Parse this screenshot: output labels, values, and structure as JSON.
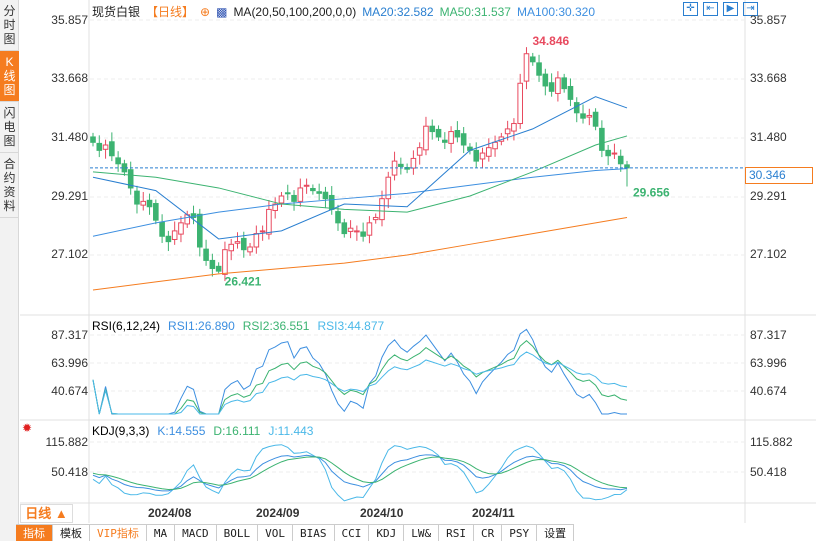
{
  "sidebar": {
    "tabs": [
      "分时图",
      "K线图",
      "闪电图",
      "合约资料"
    ],
    "active": 1
  },
  "header": {
    "instrument": "现货白银",
    "period": "【日线】",
    "ma_label": "MA(20,50,100,200,0,0)",
    "ma20": "MA20:32.582",
    "ma50": "MA50:31.537",
    "ma100": "MA100:30.320"
  },
  "colors": {
    "up": "#e84a5f",
    "down": "#3cb371",
    "ma20": "#2a7fd0",
    "ma50": "#3cb371",
    "ma100": "#3d8fe0",
    "ma200": "#f57c1f",
    "rsi1": "#3d8fe0",
    "rsi2": "#3cb371",
    "rsi3": "#4ab8e8"
  },
  "toolbar_icons": [
    "crosshair-icon",
    "zoom-start-icon",
    "zoom-in-icon",
    "zoom-end-icon"
  ],
  "price_axis": [
    "35.857",
    "33.668",
    "31.480",
    "29.291",
    "27.102"
  ],
  "current_price": "30.346",
  "high_label": "34.846",
  "low_label": "26.421",
  "last_low_label": "29.656",
  "rsi": {
    "title": "RSI(6,12,24)",
    "rsi1": "RSI1:26.890",
    "rsi2": "RSI2:36.551",
    "rsi3": "RSI3:44.877",
    "axis": [
      "87.317",
      "63.996",
      "40.674"
    ]
  },
  "kdj": {
    "title": "KDJ(9,3,3)",
    "k": "K:14.555",
    "d": "D:16.111",
    "j": "J:11.443",
    "axis": [
      "115.882",
      "50.418"
    ]
  },
  "dates": [
    "2024/08",
    "2024/09",
    "2024/10",
    "2024/11"
  ],
  "range_label": "日线 ▲",
  "bottom_tabs": [
    "指标",
    "模板",
    "VIP指标",
    "MA",
    "MACD",
    "BOLL",
    "VOL",
    "BIAS",
    "CCI",
    "KDJ",
    "LW&",
    "RSI",
    "CR",
    "PSY",
    "设置"
  ],
  "chart_data": {
    "type": "candlestick",
    "ylim": [
      25.5,
      36.2
    ],
    "closes": [
      31.3,
      31.0,
      31.2,
      30.8,
      30.5,
      30.2,
      29.6,
      29.0,
      29.1,
      28.9,
      28.4,
      27.8,
      27.6,
      28.0,
      28.3,
      28.6,
      28.5,
      27.4,
      26.9,
      26.6,
      26.5,
      27.3,
      27.5,
      27.6,
      27.3,
      27.4,
      27.9,
      28.0,
      28.8,
      29.0,
      29.3,
      29.4,
      29.1,
      29.6,
      29.7,
      29.5,
      29.4,
      29.2,
      28.8,
      28.3,
      27.9,
      28.1,
      28.0,
      27.8,
      28.3,
      28.5,
      29.2,
      30.0,
      30.6,
      30.4,
      30.3,
      30.7,
      31.1,
      31.9,
      31.7,
      31.5,
      31.3,
      31.7,
      31.5,
      31.2,
      31.0,
      30.6,
      30.9,
      31.1,
      31.3,
      31.5,
      31.8,
      32.0,
      33.5,
      34.6,
      34.3,
      33.8,
      33.4,
      33.2,
      33.7,
      33.3,
      32.9,
      32.4,
      32.2,
      32.3,
      31.9,
      31.0,
      30.8,
      30.9,
      30.5,
      30.346
    ],
    "high": 34.846,
    "high_index": 69,
    "low": 26.421,
    "low_index": 20,
    "last_low": 29.656,
    "ma_sample_index": [
      0,
      10,
      20,
      30,
      40,
      50,
      60,
      70,
      80,
      85
    ],
    "ma20": [
      30.0,
      29.5,
      27.7,
      28.0,
      29.0,
      28.9,
      31.0,
      31.8,
      33.0,
      32.58
    ],
    "ma50": [
      30.2,
      30.0,
      29.6,
      29.0,
      28.8,
      28.7,
      29.3,
      30.2,
      31.2,
      31.537
    ],
    "ma100": [
      27.8,
      28.3,
      28.7,
      29.0,
      29.2,
      29.4,
      29.7,
      30.0,
      30.25,
      30.32
    ],
    "ma200": [
      25.8,
      26.1,
      26.4,
      26.6,
      26.8,
      27.1,
      27.5,
      27.9,
      28.3,
      28.5
    ]
  }
}
